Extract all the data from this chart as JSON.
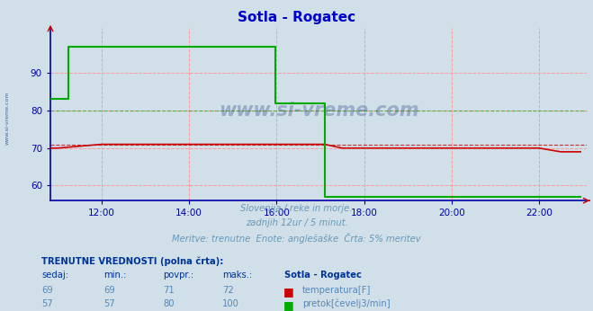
{
  "title": "Sotla - Rogatec",
  "title_color": "#0000cc",
  "bg_color": "#d0dfe8",
  "plot_bg_color": "#d0dfe8",
  "grid_color": "#ff9999",
  "axis_color": "#0000aa",
  "xlim_hours": [
    10.83,
    23.1
  ],
  "ylim": [
    56,
    102
  ],
  "yticks": [
    60,
    70,
    80,
    90
  ],
  "xticks_hours": [
    12,
    14,
    16,
    18,
    20,
    22
  ],
  "xtick_labels": [
    "12:00",
    "14:00",
    "16:00",
    "18:00",
    "20:00",
    "22:00"
  ],
  "temp_color": "#cc0000",
  "flow_color": "#00aa00",
  "watermark_color": "#1a3a7a",
  "subtitle_lines": [
    "Slovenija / reke in morje.",
    "zadnjih 12ur / 5 minut.",
    "Meritve: trenutne  Enote: anglešaške  Črta: 5% meritev"
  ],
  "subtitle_color": "#6699bb",
  "table_bold_color": "#003399",
  "table_data_color": "#5588bb",
  "temp_data_x": [
    10.83,
    11.0,
    12.0,
    13.0,
    14.0,
    15.0,
    15.95,
    16.0,
    17.0,
    17.1,
    17.5,
    18.0,
    19.0,
    20.0,
    21.0,
    22.0,
    22.5,
    22.95
  ],
  "temp_data_y": [
    70,
    70,
    71,
    71,
    71,
    71,
    71,
    71,
    71,
    71,
    70,
    70,
    70,
    70,
    70,
    70,
    69,
    69
  ],
  "flow_data_x": [
    10.83,
    11.25,
    11.25,
    15.98,
    15.98,
    17.1,
    17.1,
    20.42,
    20.42,
    22.95
  ],
  "flow_data_y": [
    83,
    83,
    97,
    97,
    82,
    82,
    57,
    57,
    57,
    57
  ],
  "temp_avg_y": 71,
  "flow_avg_y": 80,
  "side_label": "www.si-vreme.com"
}
